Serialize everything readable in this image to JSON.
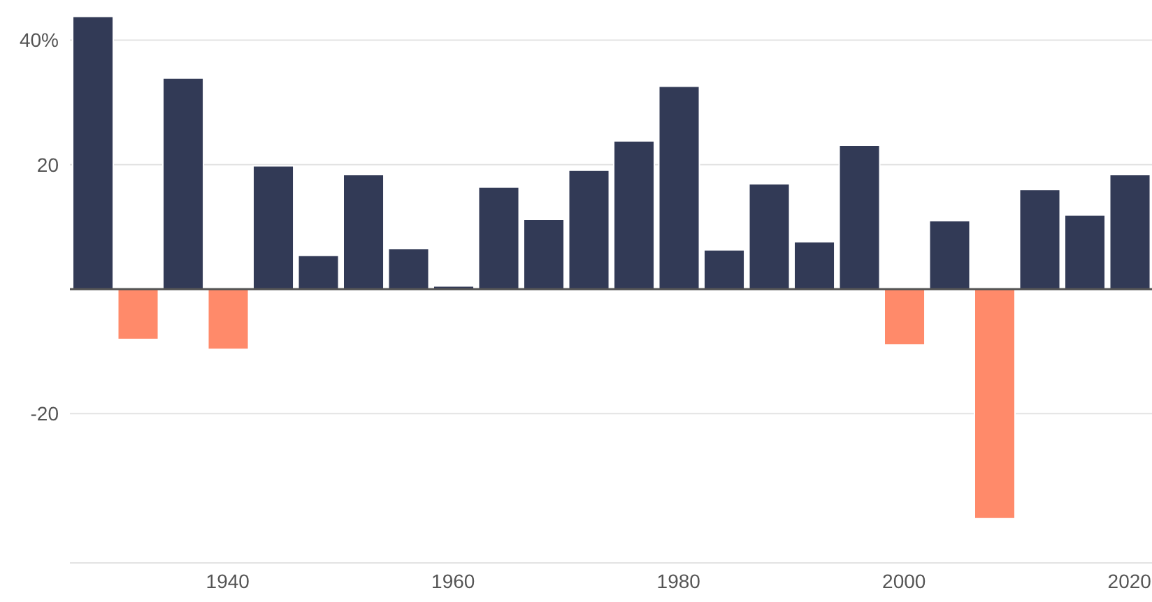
{
  "chart_data": {
    "type": "bar",
    "x": [
      1928,
      1932,
      1936,
      1940,
      1944,
      1948,
      1952,
      1956,
      1960,
      1964,
      1968,
      1972,
      1976,
      1980,
      1984,
      1988,
      1992,
      1996,
      2000,
      2004,
      2008,
      2012,
      2016,
      2020
    ],
    "values": [
      43.8,
      -8.1,
      33.9,
      -9.7,
      19.8,
      5.4,
      18.4,
      6.5,
      0.5,
      16.4,
      11.2,
      19.1,
      23.8,
      32.6,
      6.3,
      16.9,
      7.6,
      23.1,
      -9.0,
      11.0,
      -36.9,
      16.0,
      11.9,
      18.4
    ],
    "colors": [
      "#323a56",
      "#ff8a6a",
      "#323a56",
      "#ff8a6a",
      "#323a56",
      "#323a56",
      "#323a56",
      "#323a56",
      "#323a56",
      "#323a56",
      "#323a56",
      "#323a56",
      "#323a56",
      "#323a56",
      "#323a56",
      "#323a56",
      "#323a56",
      "#323a56",
      "#ff8a6a",
      "#323a56",
      "#ff8a6a",
      "#323a56",
      "#323a56",
      "#323a56"
    ],
    "xlim": [
      1926,
      2022
    ],
    "xticks": [
      1940,
      1960,
      1980,
      2000,
      2020
    ],
    "ylim": [
      -44,
      46
    ],
    "yticks": [
      {
        "value": 40,
        "label": "40%"
      },
      20,
      -20
    ],
    "grid": "y",
    "ref_lines": [
      {
        "axis": "y",
        "value": 0,
        "color": "#555555"
      }
    ]
  }
}
